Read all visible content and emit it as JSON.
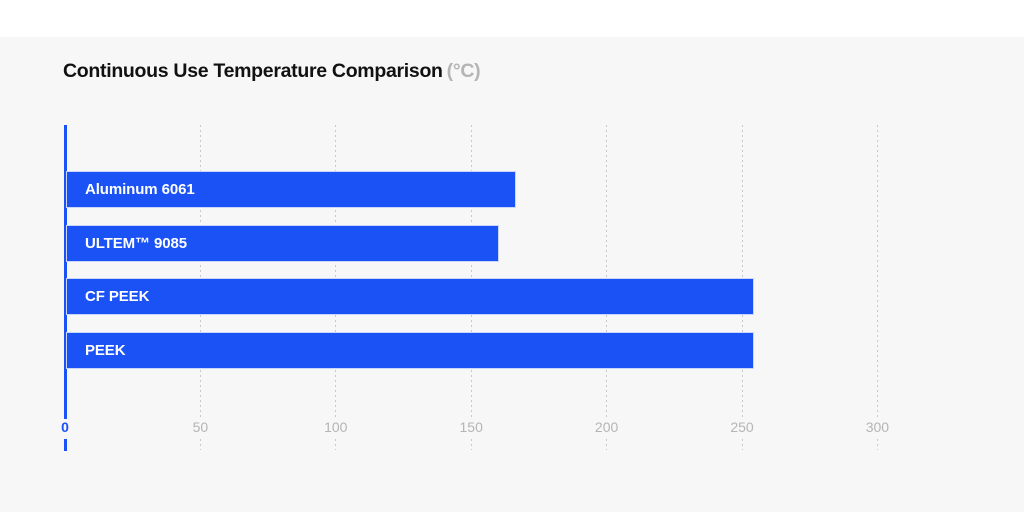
{
  "page": {
    "background_color": "#f7f7f7",
    "top_strip_color": "#ffffff"
  },
  "header": {
    "title": "Continuous Use Temperature Comparison",
    "unit": "(°C)"
  },
  "chart_data": {
    "type": "bar",
    "orientation": "horizontal",
    "title": "Continuous Use Temperature Comparison",
    "unit_label": "(°C)",
    "categories": [
      "Aluminum 6061",
      "ULTEM™ 9085",
      "CF PEEK",
      "PEEK"
    ],
    "values": [
      166,
      160,
      254,
      254
    ],
    "xlim": [
      0,
      300
    ],
    "xticks": [
      0,
      50,
      100,
      150,
      200,
      250,
      300
    ],
    "grid": "vertical-dashed",
    "legend": "none",
    "bar_color": "#1b52f6",
    "bar_border_color": "#cbd7fa",
    "bar_label_color": "#ffffff",
    "axis_zero_color": "#1b52f6",
    "zero_tick_label_color": "#1b52f6",
    "tick_label_color": "#b5b5b5",
    "gridline_color": "#c8c8c8"
  }
}
